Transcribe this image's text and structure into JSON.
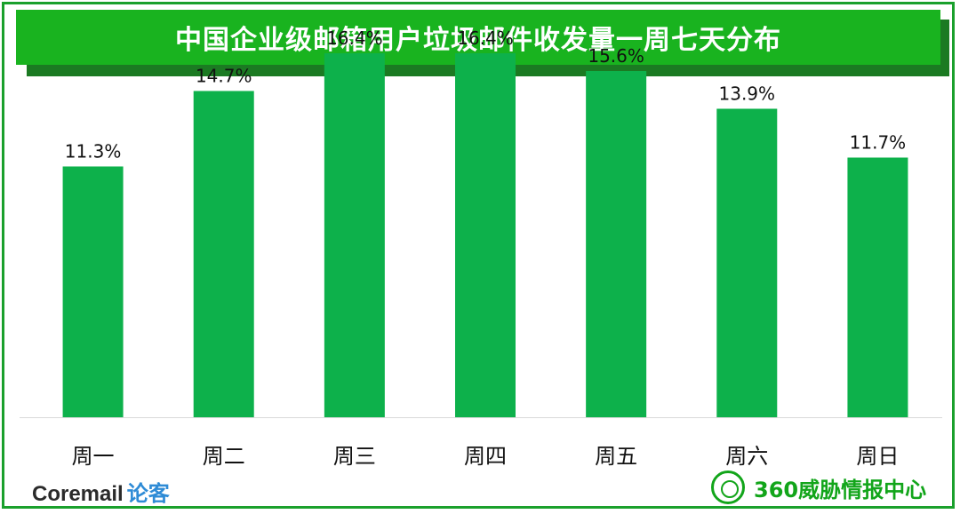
{
  "title": "中国企业级邮箱用户垃圾邮件收发量一周七天分布",
  "brand_left_latin": "Coremail",
  "brand_left_cn": "论客",
  "brand_right": "360威胁情报中心",
  "colors": {
    "bar": "#0db14b",
    "title_bg": "#19b31f",
    "frame": "#1aa02c"
  },
  "chart_data": {
    "type": "bar",
    "categories": [
      "周一",
      "周二",
      "周三",
      "周四",
      "周五",
      "周六",
      "周日"
    ],
    "values": [
      11.3,
      14.7,
      16.4,
      16.4,
      15.6,
      13.9,
      11.7
    ],
    "value_labels": [
      "11.3%",
      "14.7%",
      "16.4%",
      "16.4%",
      "15.6%",
      "13.9%",
      "11.7%"
    ],
    "title": "中国企业级邮箱用户垃圾邮件收发量一周七天分布",
    "xlabel": "",
    "ylabel": "",
    "ylim": [
      0,
      18
    ],
    "grid": false,
    "legend": "none"
  }
}
